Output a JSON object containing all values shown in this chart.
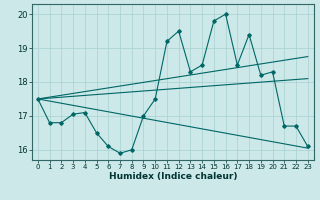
{
  "xlabel": "Humidex (Indice chaleur)",
  "bg_color": "#cce8e8",
  "grid_color": "#a8d0d0",
  "line_color": "#006666",
  "xlim": [
    -0.5,
    23.5
  ],
  "ylim": [
    15.7,
    20.3
  ],
  "yticks": [
    16,
    17,
    18,
    19,
    20
  ],
  "xticks": [
    0,
    1,
    2,
    3,
    4,
    5,
    6,
    7,
    8,
    9,
    10,
    11,
    12,
    13,
    14,
    15,
    16,
    17,
    18,
    19,
    20,
    21,
    22,
    23
  ],
  "series1_x": [
    0,
    1,
    2,
    3,
    4,
    5,
    6,
    7,
    8,
    9,
    10,
    11,
    12,
    13,
    14,
    15,
    16,
    17,
    18,
    19,
    20,
    21,
    22,
    23
  ],
  "series1_y": [
    17.5,
    16.8,
    16.8,
    17.05,
    17.1,
    16.5,
    16.1,
    15.9,
    16.0,
    17.0,
    17.5,
    19.2,
    19.5,
    18.3,
    18.5,
    19.8,
    20.0,
    18.5,
    19.4,
    18.2,
    18.3,
    16.7,
    16.7,
    16.1
  ],
  "series2_x": [
    0,
    23
  ],
  "series2_y": [
    17.5,
    18.75
  ],
  "series3_x": [
    0,
    23
  ],
  "series3_y": [
    17.5,
    18.1
  ],
  "series4_x": [
    0,
    23
  ],
  "series4_y": [
    17.5,
    16.05
  ]
}
